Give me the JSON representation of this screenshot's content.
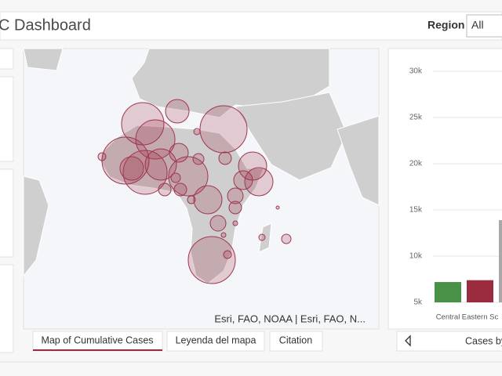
{
  "header": {
    "title": "C Dashboard",
    "region_label": "Region",
    "region_value": "All"
  },
  "map": {
    "attribution": "Esri, FAO, NOAA | Esri, FAO, N..."
  },
  "tabs": [
    "Map of Cumulative Cases",
    "Leyenda del mapa",
    "Citation"
  ],
  "chart_panel": {
    "footer": "Cases by"
  },
  "chart_data": {
    "type": "bar",
    "categories": [
      "Central",
      "Eastern Sc",
      null
    ],
    "values": [
      7200,
      7400,
      13900
    ],
    "colors": [
      "#4a9148",
      "#9b2c3f",
      "#a8a8a8"
    ],
    "ylim": [
      5000,
      31800
    ],
    "yticks": [
      {
        "value": 5000,
        "label": "5k"
      },
      {
        "value": 10000,
        "label": "10k"
      },
      {
        "value": 15000,
        "label": "15k"
      },
      {
        "value": 20000,
        "label": "20k"
      },
      {
        "value": 25000,
        "label": "25k"
      },
      {
        "value": 30000,
        "label": "30k"
      }
    ],
    "grid": true
  }
}
